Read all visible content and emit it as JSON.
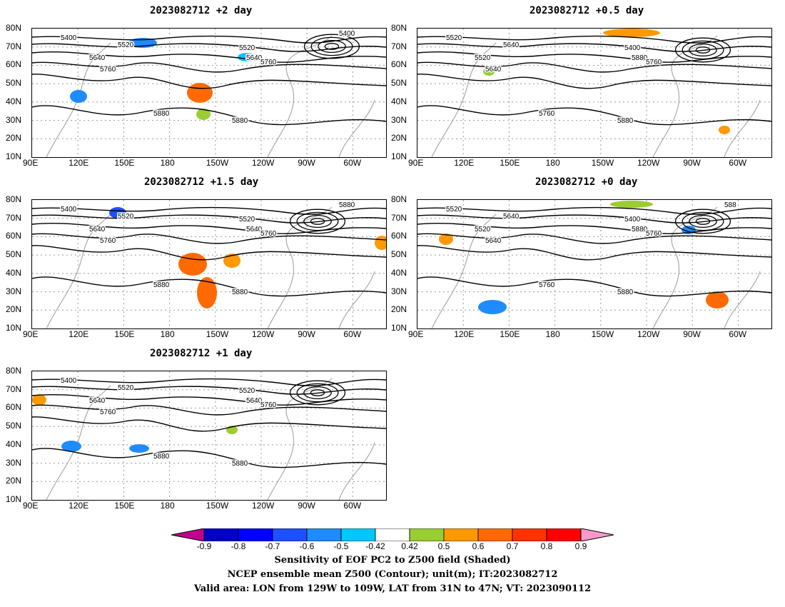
{
  "panels": [
    {
      "title": "2023082712 +2 day",
      "contours": [
        "5400",
        "5520",
        "5640",
        "5760",
        "5880",
        "5520",
        "5640",
        "5760",
        "5880",
        "5400"
      ]
    },
    {
      "title": "2023082712 +0.5 day",
      "contours": [
        "5520",
        "5640",
        "5520",
        "5640",
        "5760",
        "5400",
        "5880",
        "5760",
        "5880"
      ]
    },
    {
      "title": "2023082712 +1.5 day",
      "contours": [
        "5400",
        "5520",
        "5640",
        "5760",
        "5880",
        "5520",
        "5640",
        "5760",
        "5880",
        "5880"
      ]
    },
    {
      "title": "2023082712 +0 day",
      "contours": [
        "5520",
        "5640",
        "5520",
        "5640",
        "5760",
        "5400",
        "5880",
        "5760",
        "5880",
        "588"
      ]
    },
    {
      "title": "2023082712 +1 day",
      "contours": [
        "5400",
        "5520",
        "5640",
        "5760",
        "5880",
        "5520",
        "5640",
        "5760",
        "5880"
      ]
    }
  ],
  "lat_labels": [
    "80N",
    "70N",
    "60N",
    "50N",
    "40N",
    "30N",
    "20N",
    "10N"
  ],
  "lon_labels": [
    "90E",
    "120E",
    "150E",
    "180",
    "150W",
    "120W",
    "90W",
    "60W"
  ],
  "colorbar": {
    "labels": [
      "-0.9",
      "-0.8",
      "-0.7",
      "-0.6",
      "-0.5",
      "-0.42",
      "0.42",
      "0.5",
      "0.6",
      "0.7",
      "0.8",
      "0.9"
    ],
    "colors": [
      "#c0008f",
      "#0000c8",
      "#0000ff",
      "#1e50ff",
      "#1e8cff",
      "#00c8ff",
      "#ffffff",
      "#9acd32",
      "#ff9900",
      "#ff6a00",
      "#ff3300",
      "#ff0000",
      "#ff99cc"
    ]
  },
  "caption": {
    "line1": "Sensitivity of EOF PC2 to Z500 field (Shaded)",
    "line2": "NCEP ensemble mean Z500 (Contour); unit(m); IT:2023082712",
    "line3": "Valid area: LON from 129W to 109W, LAT from 31N to 47N; VT: 2023090112"
  }
}
